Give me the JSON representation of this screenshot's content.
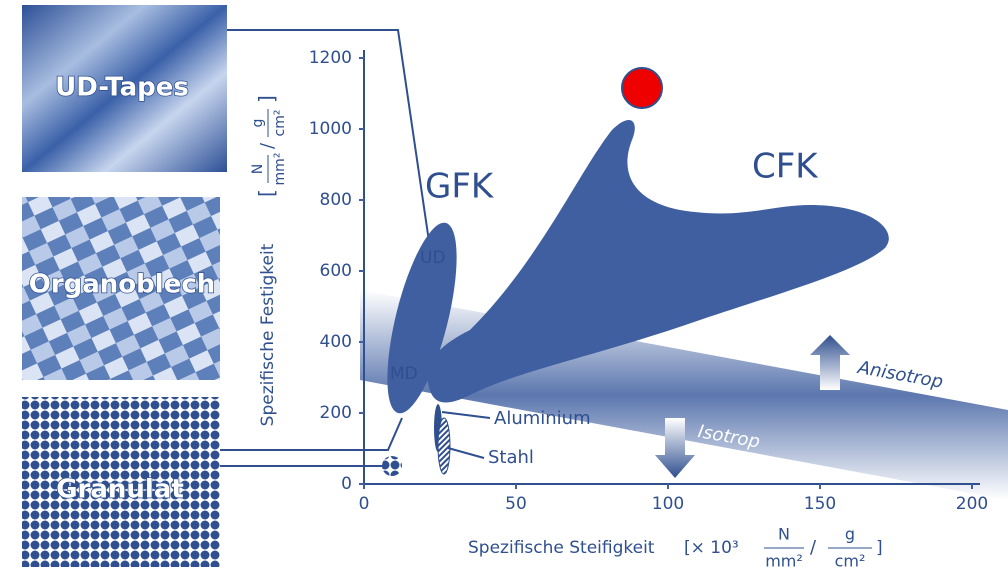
{
  "chart_data": {
    "type": "region",
    "x_label": "Spezifische Steifigkeit",
    "x_unit": {
      "prefix": "[× 10³",
      "num1": "N",
      "den1": "mm²",
      "sep": "/",
      "num2": "g",
      "den2": "cm²",
      "suffix": "]"
    },
    "y_label": "Spezifische Festigkeit",
    "y_unit": {
      "prefix": "[",
      "num1": "N",
      "den1": "mm²",
      "sep": "/",
      "num2": "g",
      "den2": "cm²",
      "suffix": "]"
    },
    "xlim": [
      0,
      200
    ],
    "xticks": [
      0,
      50,
      100,
      150,
      200
    ],
    "ylim": [
      0,
      1200
    ],
    "yticks": [
      0,
      200,
      400,
      600,
      800,
      1000,
      1200
    ],
    "regions": [
      "GFK",
      "CFK",
      "UD",
      "MD",
      "Aluminium",
      "Stahl"
    ],
    "trend": [
      "Anisotrop",
      "Isotrop"
    ],
    "materials": [
      "UD-Tapes",
      "Organoblech",
      "Granulat"
    ],
    "color": "#3f5fa0"
  }
}
